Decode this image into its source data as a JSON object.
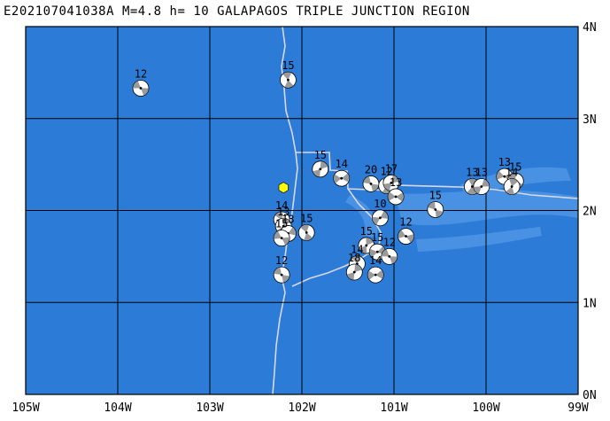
{
  "title": {
    "event_id": "E202107041038A",
    "magnitude": "M=4.8",
    "depth": "h= 10",
    "region": "GALAPAGOS TRIPLE JUNCTION REGION"
  },
  "map": {
    "ocean_color": "#2c7bd6",
    "ridge_color": "#4f95e6",
    "boundary_color": "#d8d8e8",
    "epicenter_color": "#ffff00",
    "lon_range": [
      -105,
      -99
    ],
    "lat_range": [
      0,
      4
    ],
    "lon_labels": [
      {
        "lon": -105,
        "text": "105W"
      },
      {
        "lon": -104,
        "text": "104W"
      },
      {
        "lon": -103,
        "text": "103W"
      },
      {
        "lon": -102,
        "text": "102W"
      },
      {
        "lon": -101,
        "text": "101W"
      },
      {
        "lon": -100,
        "text": "100W"
      },
      {
        "lon": -99,
        "text": "99W"
      }
    ],
    "lat_labels": [
      {
        "lat": 4,
        "text": "4N"
      },
      {
        "lat": 3,
        "text": "3N"
      },
      {
        "lat": 2,
        "text": "2N"
      },
      {
        "lat": 1,
        "text": "1N"
      },
      {
        "lat": 0,
        "text": "0N"
      }
    ],
    "epicenter": {
      "lon": -102.2,
      "lat": 2.25
    },
    "events": [
      {
        "lon": -103.75,
        "lat": 3.33,
        "depth": "12"
      },
      {
        "lon": -102.15,
        "lat": 3.42,
        "depth": "15"
      },
      {
        "lon": -101.8,
        "lat": 2.45,
        "depth": "15"
      },
      {
        "lon": -101.57,
        "lat": 2.35,
        "depth": "14"
      },
      {
        "lon": -101.25,
        "lat": 2.29,
        "depth": "20"
      },
      {
        "lon": -101.08,
        "lat": 2.27,
        "depth": "12"
      },
      {
        "lon": -101.03,
        "lat": 2.3,
        "depth": "17"
      },
      {
        "lon": -100.98,
        "lat": 2.15,
        "depth": "13"
      },
      {
        "lon": -100.55,
        "lat": 2.01,
        "depth": "15"
      },
      {
        "lon": -100.15,
        "lat": 2.26,
        "depth": "13"
      },
      {
        "lon": -100.05,
        "lat": 2.26,
        "depth": "13"
      },
      {
        "lon": -99.8,
        "lat": 2.37,
        "depth": "13"
      },
      {
        "lon": -99.68,
        "lat": 2.32,
        "depth": "15"
      },
      {
        "lon": -99.72,
        "lat": 2.26,
        "depth": "14"
      },
      {
        "lon": -101.15,
        "lat": 1.92,
        "depth": "10"
      },
      {
        "lon": -100.87,
        "lat": 1.72,
        "depth": "12"
      },
      {
        "lon": -102.22,
        "lat": 1.9,
        "depth": "14"
      },
      {
        "lon": -102.2,
        "lat": 1.83,
        "depth": "13"
      },
      {
        "lon": -102.15,
        "lat": 1.75,
        "depth": "13"
      },
      {
        "lon": -102.22,
        "lat": 1.7,
        "depth": "15"
      },
      {
        "lon": -101.95,
        "lat": 1.76,
        "depth": "15"
      },
      {
        "lon": -101.3,
        "lat": 1.62,
        "depth": "15"
      },
      {
        "lon": -101.18,
        "lat": 1.55,
        "depth": "15"
      },
      {
        "lon": -101.05,
        "lat": 1.5,
        "depth": "12"
      },
      {
        "lon": -101.4,
        "lat": 1.42,
        "depth": "14"
      },
      {
        "lon": -101.43,
        "lat": 1.33,
        "depth": "18"
      },
      {
        "lon": -101.2,
        "lat": 1.3,
        "depth": "14"
      },
      {
        "lon": -102.22,
        "lat": 1.3,
        "depth": "12"
      }
    ]
  }
}
